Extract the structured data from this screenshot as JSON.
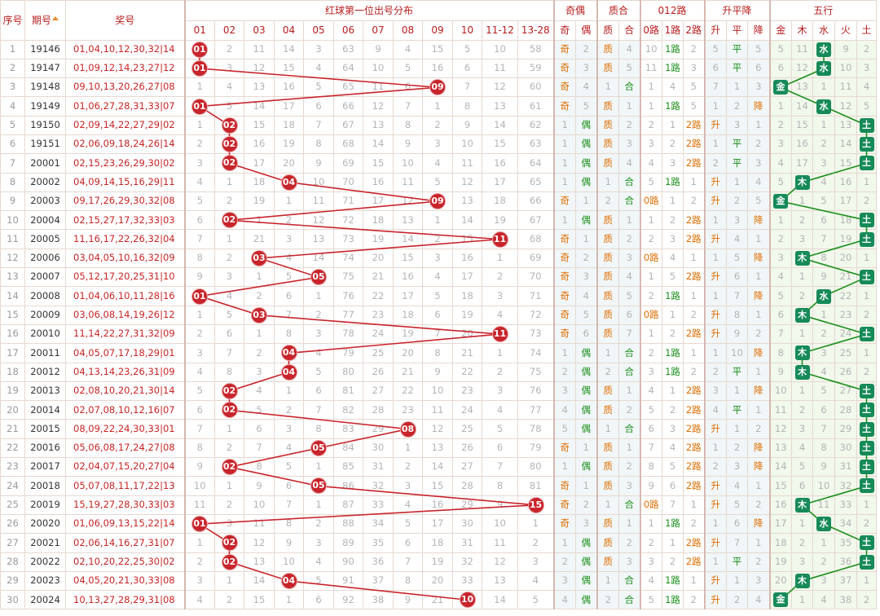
{
  "header": {
    "seq": "序号",
    "issue": "期号",
    "award": "奖号",
    "dist_title": "红球第一位出号分布",
    "odd_even_title": "奇偶",
    "prime_comp_title": "质合",
    "route_title": "012路",
    "trend_title": "升平降",
    "element_title": "五行",
    "number_cols": [
      "01",
      "02",
      "03",
      "04",
      "05",
      "06",
      "07",
      "08",
      "09",
      "10",
      "11-12",
      "13-28"
    ],
    "odd_even_cols": [
      "奇",
      "偶"
    ],
    "prime_comp_cols": [
      "质",
      "合"
    ],
    "route_cols": [
      "0路",
      "1路",
      "2路"
    ],
    "trend_cols": [
      "升",
      "平",
      "降"
    ],
    "element_cols": [
      "金",
      "木",
      "水",
      "火",
      "土"
    ]
  },
  "colors": {
    "ball": "#c8242b",
    "element_box": "#178a5a",
    "dist_line": "#c8242b",
    "element_line": "#1a8f1a"
  },
  "rows": [
    {
      "seq": "1",
      "issue": "19146",
      "award": "01,04,10,12,30,32|14",
      "first": "01",
      "dist": [
        "01",
        "2",
        "11",
        "14",
        "3",
        "63",
        "9",
        "4",
        "15",
        "5",
        "10",
        "58"
      ],
      "oe": [
        "奇",
        "2"
      ],
      "pc": [
        "质",
        "4"
      ],
      "route": [
        "10",
        "1路",
        "2"
      ],
      "trend": [
        "5",
        "平",
        "5"
      ],
      "wx": [
        "5",
        "11",
        "水",
        "9",
        "2"
      ]
    },
    {
      "seq": "2",
      "issue": "19147",
      "award": "01,09,12,14,23,27|12",
      "first": "01",
      "dist": [
        "01",
        "3",
        "12",
        "15",
        "4",
        "64",
        "10",
        "5",
        "16",
        "6",
        "11",
        "59"
      ],
      "oe": [
        "奇",
        "3"
      ],
      "pc": [
        "质",
        "5"
      ],
      "route": [
        "11",
        "1路",
        "3"
      ],
      "trend": [
        "6",
        "平",
        "6"
      ],
      "wx": [
        "6",
        "12",
        "水",
        "10",
        "3"
      ]
    },
    {
      "seq": "3",
      "issue": "19148",
      "award": "09,10,13,20,26,27|08",
      "first": "09",
      "dist": [
        "1",
        "4",
        "13",
        "16",
        "5",
        "65",
        "11",
        "6",
        "09",
        "7",
        "12",
        "60"
      ],
      "oe": [
        "奇",
        "4"
      ],
      "pc": [
        "1",
        "合"
      ],
      "route": [
        "1",
        "4",
        "5"
      ],
      "trend": [
        "7",
        "1",
        "3"
      ],
      "wx": [
        "金",
        "13",
        "1",
        "11",
        "4"
      ]
    },
    {
      "seq": "4",
      "issue": "19149",
      "award": "01,06,27,28,31,33|07",
      "first": "01",
      "dist": [
        "01",
        "5",
        "14",
        "17",
        "6",
        "66",
        "12",
        "7",
        "1",
        "8",
        "13",
        "61"
      ],
      "oe": [
        "奇",
        "5"
      ],
      "pc": [
        "质",
        "1"
      ],
      "route": [
        "1",
        "1路",
        "5"
      ],
      "trend": [
        "1",
        "2",
        "降"
      ],
      "wx": [
        "1",
        "14",
        "水",
        "12",
        "5"
      ]
    },
    {
      "seq": "5",
      "issue": "19150",
      "award": "02,09,14,22,27,29|02",
      "first": "02",
      "dist": [
        "1",
        "02",
        "15",
        "18",
        "7",
        "67",
        "13",
        "8",
        "2",
        "9",
        "14",
        "62"
      ],
      "oe": [
        "1",
        "偶"
      ],
      "pc": [
        "质",
        "2"
      ],
      "route": [
        "2",
        "1",
        "2路"
      ],
      "trend": [
        "升",
        "3",
        "1"
      ],
      "wx": [
        "2",
        "15",
        "1",
        "13",
        "土"
      ]
    },
    {
      "seq": "6",
      "issue": "19151",
      "award": "02,06,09,18,24,26|14",
      "first": "02",
      "dist": [
        "2",
        "02",
        "16",
        "19",
        "8",
        "68",
        "14",
        "9",
        "3",
        "10",
        "15",
        "63"
      ],
      "oe": [
        "1",
        "偶"
      ],
      "pc": [
        "质",
        "3"
      ],
      "route": [
        "3",
        "2",
        "2路"
      ],
      "trend": [
        "1",
        "平",
        "2"
      ],
      "wx": [
        "3",
        "16",
        "2",
        "14",
        "土"
      ]
    },
    {
      "seq": "7",
      "issue": "20001",
      "award": "02,15,23,26,29,30|02",
      "first": "02",
      "dist": [
        "3",
        "02",
        "17",
        "20",
        "9",
        "69",
        "15",
        "10",
        "4",
        "11",
        "16",
        "64"
      ],
      "oe": [
        "1",
        "偶"
      ],
      "pc": [
        "质",
        "4"
      ],
      "route": [
        "4",
        "3",
        "2路"
      ],
      "trend": [
        "2",
        "平",
        "3"
      ],
      "wx": [
        "4",
        "17",
        "3",
        "15",
        "土"
      ]
    },
    {
      "seq": "8",
      "issue": "20002",
      "award": "04,09,14,15,16,29|11",
      "first": "04",
      "dist": [
        "4",
        "1",
        "18",
        "04",
        "10",
        "70",
        "16",
        "11",
        "5",
        "12",
        "17",
        "65"
      ],
      "oe": [
        "1",
        "偶"
      ],
      "pc": [
        "1",
        "合"
      ],
      "route": [
        "5",
        "1路",
        "1"
      ],
      "trend": [
        "升",
        "1",
        "4"
      ],
      "wx": [
        "5",
        "木",
        "4",
        "16",
        "1"
      ]
    },
    {
      "seq": "9",
      "issue": "20003",
      "award": "09,17,26,29,30,32|08",
      "first": "09",
      "dist": [
        "5",
        "2",
        "19",
        "1",
        "11",
        "71",
        "17",
        "12",
        "09",
        "13",
        "18",
        "66"
      ],
      "oe": [
        "奇",
        "1"
      ],
      "pc": [
        "2",
        "合"
      ],
      "route": [
        "0路",
        "1",
        "2"
      ],
      "trend": [
        "升",
        "2",
        "5"
      ],
      "wx": [
        "金",
        "1",
        "5",
        "17",
        "2"
      ]
    },
    {
      "seq": "10",
      "issue": "20004",
      "award": "02,15,27,17,32,33|03",
      "first": "02",
      "dist": [
        "6",
        "02",
        "1",
        "2",
        "12",
        "72",
        "18",
        "13",
        "1",
        "14",
        "19",
        "67"
      ],
      "oe": [
        "1",
        "偶"
      ],
      "pc": [
        "质",
        "1"
      ],
      "route": [
        "1",
        "2",
        "2路"
      ],
      "trend": [
        "1",
        "3",
        "降"
      ],
      "wx": [
        "1",
        "2",
        "6",
        "18",
        "土"
      ]
    },
    {
      "seq": "11",
      "issue": "20005",
      "award": "11,16,17,22,26,32|04",
      "first": "11",
      "dist": [
        "7",
        "1",
        "21",
        "3",
        "13",
        "73",
        "19",
        "14",
        "2",
        "15",
        "11",
        "68"
      ],
      "oe": [
        "奇",
        "1"
      ],
      "pc": [
        "质",
        "2"
      ],
      "route": [
        "2",
        "3",
        "2路"
      ],
      "trend": [
        "升",
        "4",
        "1"
      ],
      "wx": [
        "2",
        "3",
        "7",
        "19",
        "土"
      ]
    },
    {
      "seq": "12",
      "issue": "20006",
      "award": "03,04,05,10,16,32|09",
      "first": "03",
      "dist": [
        "8",
        "2",
        "03",
        "4",
        "14",
        "74",
        "20",
        "15",
        "3",
        "16",
        "1",
        "69"
      ],
      "oe": [
        "奇",
        "2"
      ],
      "pc": [
        "质",
        "3"
      ],
      "route": [
        "0路",
        "4",
        "1"
      ],
      "trend": [
        "1",
        "5",
        "降"
      ],
      "wx": [
        "3",
        "木",
        "8",
        "20",
        "1"
      ]
    },
    {
      "seq": "13",
      "issue": "20007",
      "award": "05,12,17,20,25,31|10",
      "first": "05",
      "dist": [
        "9",
        "3",
        "1",
        "5",
        "05",
        "75",
        "21",
        "16",
        "4",
        "17",
        "2",
        "70"
      ],
      "oe": [
        "奇",
        "3"
      ],
      "pc": [
        "质",
        "4"
      ],
      "route": [
        "1",
        "5",
        "2路"
      ],
      "trend": [
        "升",
        "6",
        "1"
      ],
      "wx": [
        "4",
        "1",
        "9",
        "21",
        "土"
      ]
    },
    {
      "seq": "14",
      "issue": "20008",
      "award": "01,04,06,10,11,28|16",
      "first": "01",
      "dist": [
        "01",
        "4",
        "2",
        "6",
        "1",
        "76",
        "22",
        "17",
        "5",
        "18",
        "3",
        "71"
      ],
      "oe": [
        "奇",
        "4"
      ],
      "pc": [
        "质",
        "5"
      ],
      "route": [
        "2",
        "1路",
        "1"
      ],
      "trend": [
        "1",
        "7",
        "降"
      ],
      "wx": [
        "5",
        "2",
        "水",
        "22",
        "1"
      ]
    },
    {
      "seq": "15",
      "issue": "20009",
      "award": "03,06,08,14,19,26|12",
      "first": "03",
      "dist": [
        "1",
        "5",
        "03",
        "7",
        "2",
        "77",
        "23",
        "18",
        "6",
        "19",
        "4",
        "72"
      ],
      "oe": [
        "奇",
        "5"
      ],
      "pc": [
        "质",
        "6"
      ],
      "route": [
        "0路",
        "1",
        "2"
      ],
      "trend": [
        "升",
        "8",
        "1"
      ],
      "wx": [
        "6",
        "木",
        "1",
        "23",
        "2"
      ]
    },
    {
      "seq": "16",
      "issue": "20010",
      "award": "11,14,22,27,31,32|09",
      "first": "11",
      "dist": [
        "2",
        "6",
        "1",
        "8",
        "3",
        "78",
        "24",
        "19",
        "7",
        "20",
        "11",
        "73"
      ],
      "oe": [
        "奇",
        "6"
      ],
      "pc": [
        "质",
        "7"
      ],
      "route": [
        "1",
        "2",
        "2路"
      ],
      "trend": [
        "升",
        "9",
        "2"
      ],
      "wx": [
        "7",
        "1",
        "2",
        "24",
        "土"
      ]
    },
    {
      "seq": "17",
      "issue": "20011",
      "award": "04,05,07,17,18,29|01",
      "first": "04",
      "dist": [
        "3",
        "7",
        "2",
        "04",
        "4",
        "79",
        "25",
        "20",
        "8",
        "21",
        "1",
        "74"
      ],
      "oe": [
        "1",
        "偶"
      ],
      "pc": [
        "1",
        "合"
      ],
      "route": [
        "2",
        "1路",
        "1"
      ],
      "trend": [
        "1",
        "10",
        "降"
      ],
      "wx": [
        "8",
        "木",
        "3",
        "25",
        "1"
      ]
    },
    {
      "seq": "18",
      "issue": "20012",
      "award": "04,13,14,23,26,31|09",
      "first": "04",
      "dist": [
        "4",
        "8",
        "3",
        "04",
        "5",
        "80",
        "26",
        "21",
        "9",
        "22",
        "2",
        "75"
      ],
      "oe": [
        "2",
        "偶"
      ],
      "pc": [
        "2",
        "合"
      ],
      "route": [
        "3",
        "1路",
        "2"
      ],
      "trend": [
        "2",
        "平",
        "1"
      ],
      "wx": [
        "9",
        "木",
        "4",
        "26",
        "2"
      ]
    },
    {
      "seq": "19",
      "issue": "20013",
      "award": "02,08,10,20,21,30|14",
      "first": "02",
      "dist": [
        "5",
        "02",
        "4",
        "1",
        "6",
        "81",
        "27",
        "22",
        "10",
        "23",
        "3",
        "76"
      ],
      "oe": [
        "3",
        "偶"
      ],
      "pc": [
        "质",
        "1"
      ],
      "route": [
        "4",
        "1",
        "2路"
      ],
      "trend": [
        "3",
        "1",
        "降"
      ],
      "wx": [
        "10",
        "1",
        "5",
        "27",
        "土"
      ]
    },
    {
      "seq": "20",
      "issue": "20014",
      "award": "02,07,08,10,12,16|07",
      "first": "02",
      "dist": [
        "6",
        "02",
        "5",
        "2",
        "7",
        "82",
        "28",
        "23",
        "11",
        "24",
        "4",
        "77"
      ],
      "oe": [
        "4",
        "偶"
      ],
      "pc": [
        "质",
        "2"
      ],
      "route": [
        "5",
        "2",
        "2路"
      ],
      "trend": [
        "4",
        "平",
        "1"
      ],
      "wx": [
        "11",
        "2",
        "6",
        "28",
        "土"
      ]
    },
    {
      "seq": "21",
      "issue": "20015",
      "award": "08,09,22,24,30,33|01",
      "first": "08",
      "dist": [
        "7",
        "1",
        "6",
        "3",
        "8",
        "83",
        "29",
        "08",
        "12",
        "25",
        "5",
        "78"
      ],
      "oe": [
        "5",
        "偶"
      ],
      "pc": [
        "1",
        "合"
      ],
      "route": [
        "6",
        "3",
        "2路"
      ],
      "trend": [
        "升",
        "1",
        "2"
      ],
      "wx": [
        "12",
        "3",
        "7",
        "29",
        "土"
      ]
    },
    {
      "seq": "22",
      "issue": "20016",
      "award": "05,06,08,17,24,27|08",
      "first": "05",
      "dist": [
        "8",
        "2",
        "7",
        "4",
        "05",
        "84",
        "30",
        "1",
        "13",
        "26",
        "6",
        "79"
      ],
      "oe": [
        "奇",
        "1"
      ],
      "pc": [
        "质",
        "1"
      ],
      "route": [
        "7",
        "4",
        "2路"
      ],
      "trend": [
        "1",
        "2",
        "降"
      ],
      "wx": [
        "13",
        "4",
        "8",
        "30",
        "土"
      ]
    },
    {
      "seq": "23",
      "issue": "20017",
      "award": "02,04,07,15,20,27|04",
      "first": "02",
      "dist": [
        "9",
        "02",
        "8",
        "5",
        "1",
        "85",
        "31",
        "2",
        "14",
        "27",
        "7",
        "80"
      ],
      "oe": [
        "1",
        "偶"
      ],
      "pc": [
        "质",
        "2"
      ],
      "route": [
        "8",
        "5",
        "2路"
      ],
      "trend": [
        "2",
        "3",
        "降"
      ],
      "wx": [
        "14",
        "5",
        "9",
        "31",
        "土"
      ]
    },
    {
      "seq": "24",
      "issue": "20018",
      "award": "05,07,08,11,17,22|13",
      "first": "05",
      "dist": [
        "10",
        "1",
        "9",
        "6",
        "05",
        "86",
        "32",
        "3",
        "15",
        "28",
        "8",
        "81"
      ],
      "oe": [
        "奇",
        "1"
      ],
      "pc": [
        "质",
        "3"
      ],
      "route": [
        "9",
        "6",
        "2路"
      ],
      "trend": [
        "升",
        "4",
        "1"
      ],
      "wx": [
        "15",
        "6",
        "10",
        "32",
        "土"
      ]
    },
    {
      "seq": "25",
      "issue": "20019",
      "award": "15,19,27,28,30,33|03",
      "first": "15",
      "dist": [
        "11",
        "2",
        "10",
        "7",
        "1",
        "87",
        "33",
        "4",
        "16",
        "29",
        "9",
        "15"
      ],
      "oe": [
        "奇",
        "2"
      ],
      "pc": [
        "1",
        "合"
      ],
      "route": [
        "0路",
        "7",
        "1"
      ],
      "trend": [
        "升",
        "5",
        "2"
      ],
      "wx": [
        "16",
        "木",
        "11",
        "33",
        "1"
      ]
    },
    {
      "seq": "26",
      "issue": "20020",
      "award": "01,06,09,13,15,22|14",
      "first": "01",
      "dist": [
        "01",
        "3",
        "11",
        "8",
        "2",
        "88",
        "34",
        "5",
        "17",
        "30",
        "10",
        "1"
      ],
      "oe": [
        "奇",
        "3"
      ],
      "pc": [
        "质",
        "1"
      ],
      "route": [
        "1",
        "1路",
        "2"
      ],
      "trend": [
        "1",
        "6",
        "降"
      ],
      "wx": [
        "17",
        "1",
        "水",
        "34",
        "2"
      ]
    },
    {
      "seq": "27",
      "issue": "20021",
      "award": "02,06,14,16,27,31|07",
      "first": "02",
      "dist": [
        "1",
        "02",
        "12",
        "9",
        "3",
        "89",
        "35",
        "6",
        "18",
        "31",
        "11",
        "2"
      ],
      "oe": [
        "1",
        "偶"
      ],
      "pc": [
        "质",
        "2"
      ],
      "route": [
        "2",
        "1",
        "2路"
      ],
      "trend": [
        "升",
        "7",
        "1"
      ],
      "wx": [
        "18",
        "2",
        "1",
        "35",
        "土"
      ]
    },
    {
      "seq": "28",
      "issue": "20022",
      "award": "02,10,20,22,25,30|02",
      "first": "02",
      "dist": [
        "2",
        "02",
        "13",
        "10",
        "4",
        "90",
        "36",
        "7",
        "19",
        "32",
        "12",
        "3"
      ],
      "oe": [
        "2",
        "偶"
      ],
      "pc": [
        "质",
        "3"
      ],
      "route": [
        "3",
        "2",
        "2路"
      ],
      "trend": [
        "1",
        "平",
        "2"
      ],
      "wx": [
        "19",
        "3",
        "2",
        "36",
        "土"
      ]
    },
    {
      "seq": "29",
      "issue": "20023",
      "award": "04,05,20,21,30,33|08",
      "first": "04",
      "dist": [
        "3",
        "1",
        "14",
        "04",
        "5",
        "91",
        "37",
        "8",
        "20",
        "33",
        "13",
        "4"
      ],
      "oe": [
        "3",
        "偶"
      ],
      "pc": [
        "1",
        "合"
      ],
      "route": [
        "4",
        "1路",
        "1"
      ],
      "trend": [
        "升",
        "1",
        "3"
      ],
      "wx": [
        "20",
        "木",
        "3",
        "37",
        "1"
      ]
    },
    {
      "seq": "30",
      "issue": "20024",
      "award": "10,13,27,28,29,31|08",
      "first": "10",
      "dist": [
        "4",
        "2",
        "15",
        "1",
        "6",
        "92",
        "38",
        "9",
        "21",
        "10",
        "14",
        "5"
      ],
      "oe": [
        "4",
        "偶"
      ],
      "pc": [
        "2",
        "合"
      ],
      "route": [
        "5",
        "1路",
        "2"
      ],
      "trend": [
        "升",
        "2",
        "4"
      ],
      "wx": [
        "金",
        "1",
        "4",
        "38",
        "2"
      ]
    }
  ]
}
